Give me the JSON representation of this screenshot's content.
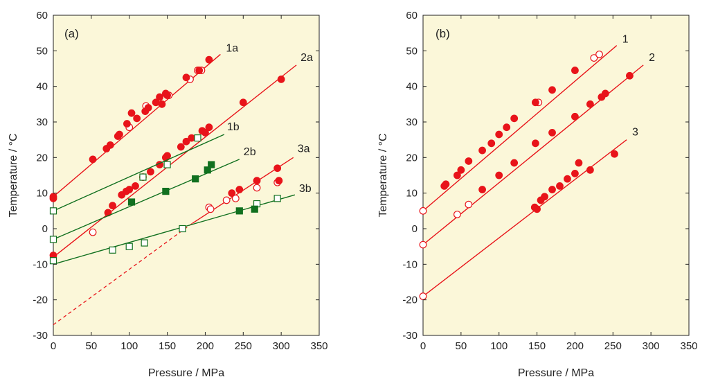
{
  "colors": {
    "panel_bg": "#fbf7d9",
    "red": "#e8141a",
    "green": "#11701f",
    "axis": "#222222"
  },
  "chart_data": [
    {
      "type": "scatter",
      "panel_label": "(a)",
      "xlabel": "Pressure / MPa",
      "ylabel": "Temperature / °C",
      "xlim": [
        0,
        350
      ],
      "ylim": [
        -30,
        60
      ],
      "xticks": [
        "0",
        "50",
        "100",
        "150",
        "200",
        "250",
        "300",
        "350"
      ],
      "yticks": [
        "-30",
        "-20",
        "-10",
        "0",
        "10",
        "20",
        "30",
        "40",
        "50",
        "60"
      ],
      "grid": false,
      "series": [
        {
          "name": "1a",
          "color": "red",
          "fit": {
            "x": [
              0,
              220
            ],
            "y": [
              9,
              49
            ]
          },
          "filled": [
            [
              0,
              9
            ],
            [
              0,
              8.5
            ],
            [
              52,
              19.5
            ],
            [
              70,
              22.5
            ],
            [
              75,
              23.5
            ],
            [
              85,
              26
            ],
            [
              87,
              26.5
            ],
            [
              97,
              29.5
            ],
            [
              103,
              32.5
            ],
            [
              110,
              31
            ],
            [
              121,
              33
            ],
            [
              125,
              34
            ],
            [
              135,
              35.5
            ],
            [
              140,
              37
            ],
            [
              143,
              35
            ],
            [
              148,
              38
            ],
            [
              150,
              37.5
            ],
            [
              175,
              42.5
            ],
            [
              192,
              44.5
            ],
            [
              205,
              47.5
            ]
          ],
          "open": [
            [
              100,
              28.5
            ],
            [
              122,
              34.5
            ],
            [
              152,
              37.5
            ],
            [
              180,
              42
            ],
            [
              190,
              44.5
            ],
            [
              195,
              44.5
            ]
          ]
        },
        {
          "name": "2a",
          "color": "red",
          "fit": {
            "x": [
              0,
              320
            ],
            "y": [
              -8,
              46
            ]
          },
          "filled": [
            [
              0,
              -7.5
            ],
            [
              72,
              4.5
            ],
            [
              78,
              6.5
            ],
            [
              90,
              9.5
            ],
            [
              96,
              10.5
            ],
            [
              100,
              11
            ],
            [
              108,
              12
            ],
            [
              118,
              14.5
            ],
            [
              128,
              16
            ],
            [
              140,
              18
            ],
            [
              148,
              20
            ],
            [
              150,
              20.5
            ],
            [
              168,
              23
            ],
            [
              175,
              24.5
            ],
            [
              182,
              25.5
            ],
            [
              196,
              27.5
            ],
            [
              200,
              27
            ],
            [
              205,
              28.5
            ],
            [
              250,
              35.5
            ],
            [
              300,
              42
            ]
          ],
          "open": [
            [
              52,
              -1
            ]
          ]
        },
        {
          "name": "3a",
          "color": "red",
          "fit": {
            "x": [
              183,
              316
            ],
            "y": [
              1.5,
              20
            ]
          },
          "extrapolation": {
            "x": [
              0,
              183
            ],
            "y": [
              -27,
              1.5
            ]
          },
          "filled": [
            [
              235,
              10
            ],
            [
              245,
              11
            ],
            [
              268,
              13.5
            ],
            [
              295,
              17
            ],
            [
              297,
              13.5
            ]
          ],
          "open": [
            [
              205,
              6
            ],
            [
              207,
              5.5
            ],
            [
              228,
              8
            ],
            [
              240,
              8.5
            ],
            [
              268,
              11.5
            ],
            [
              295,
              13
            ]
          ]
        },
        {
          "name": "1b",
          "color": "green",
          "fit": {
            "x": [
              0,
              225
            ],
            "y": [
              5,
              26.5
            ]
          },
          "filled": [],
          "open": [
            [
              0,
              5
            ],
            [
              118,
              14.5
            ],
            [
              150,
              18
            ],
            [
              190,
              25.5
            ]
          ]
        },
        {
          "name": "2b",
          "color": "green",
          "fit": {
            "x": [
              0,
              245
            ],
            "y": [
              -3,
              19.5
            ]
          },
          "filled": [
            [
              103,
              7.5
            ],
            [
              148,
              10.5
            ],
            [
              187,
              14
            ],
            [
              203,
              16.5
            ],
            [
              208,
              18
            ]
          ],
          "open": [
            [
              0,
              -3
            ]
          ]
        },
        {
          "name": "3b",
          "color": "green",
          "fit": {
            "x": [
              0,
              318
            ],
            "y": [
              -10,
              9.5
            ]
          },
          "filled": [
            [
              245,
              5
            ],
            [
              265,
              5.5
            ]
          ],
          "open": [
            [
              0,
              -9
            ],
            [
              78,
              -6
            ],
            [
              100,
              -5
            ],
            [
              120,
              -4
            ],
            [
              170,
              0
            ],
            [
              268,
              7
            ],
            [
              295,
              8.5
            ]
          ]
        }
      ]
    },
    {
      "type": "scatter",
      "panel_label": "(b)",
      "xlabel": "Pressure / MPa",
      "ylabel": "Temperature / °C",
      "xlim": [
        0,
        350
      ],
      "ylim": [
        -30,
        60
      ],
      "xticks": [
        "0",
        "50",
        "100",
        "150",
        "200",
        "250",
        "300",
        "350"
      ],
      "yticks": [
        "-30",
        "-20",
        "-10",
        "0",
        "10",
        "20",
        "30",
        "40",
        "50",
        "60"
      ],
      "grid": false,
      "series": [
        {
          "name": "1",
          "color": "red",
          "fit": {
            "x": [
              0,
              255
            ],
            "y": [
              5,
              51.5
            ]
          },
          "filled": [
            [
              28,
              12
            ],
            [
              30,
              12.5
            ],
            [
              45,
              15
            ],
            [
              50,
              16.5
            ],
            [
              60,
              19
            ],
            [
              78,
              22
            ],
            [
              90,
              24
            ],
            [
              100,
              26.5
            ],
            [
              110,
              28.5
            ],
            [
              120,
              31
            ],
            [
              148,
              35.5
            ],
            [
              170,
              39
            ],
            [
              200,
              44.5
            ]
          ],
          "open": [
            [
              0,
              5
            ],
            [
              152,
              35.5
            ],
            [
              225,
              48
            ],
            [
              232,
              49
            ]
          ]
        },
        {
          "name": "2",
          "color": "red",
          "fit": {
            "x": [
              0,
              290
            ],
            "y": [
              -4.5,
              46
            ]
          },
          "filled": [
            [
              78,
              11
            ],
            [
              100,
              15
            ],
            [
              120,
              18.5
            ],
            [
              148,
              24
            ],
            [
              170,
              27
            ],
            [
              200,
              31.5
            ],
            [
              220,
              35
            ],
            [
              235,
              37
            ],
            [
              240,
              38
            ],
            [
              272,
              43
            ]
          ],
          "open": [
            [
              0,
              -4.5
            ],
            [
              45,
              4
            ],
            [
              60,
              6.8
            ]
          ]
        },
        {
          "name": "3",
          "color": "red",
          "fit": {
            "x": [
              0,
              268
            ],
            "y": [
              -19,
              25
            ]
          },
          "filled": [
            [
              147,
              6
            ],
            [
              150,
              5.5
            ],
            [
              155,
              8
            ],
            [
              160,
              9
            ],
            [
              170,
              11
            ],
            [
              180,
              12
            ],
            [
              190,
              14
            ],
            [
              200,
              15.5
            ],
            [
              205,
              18.5
            ],
            [
              220,
              16.5
            ],
            [
              252,
              21
            ]
          ],
          "open": [
            [
              0,
              -19
            ]
          ]
        }
      ]
    }
  ]
}
